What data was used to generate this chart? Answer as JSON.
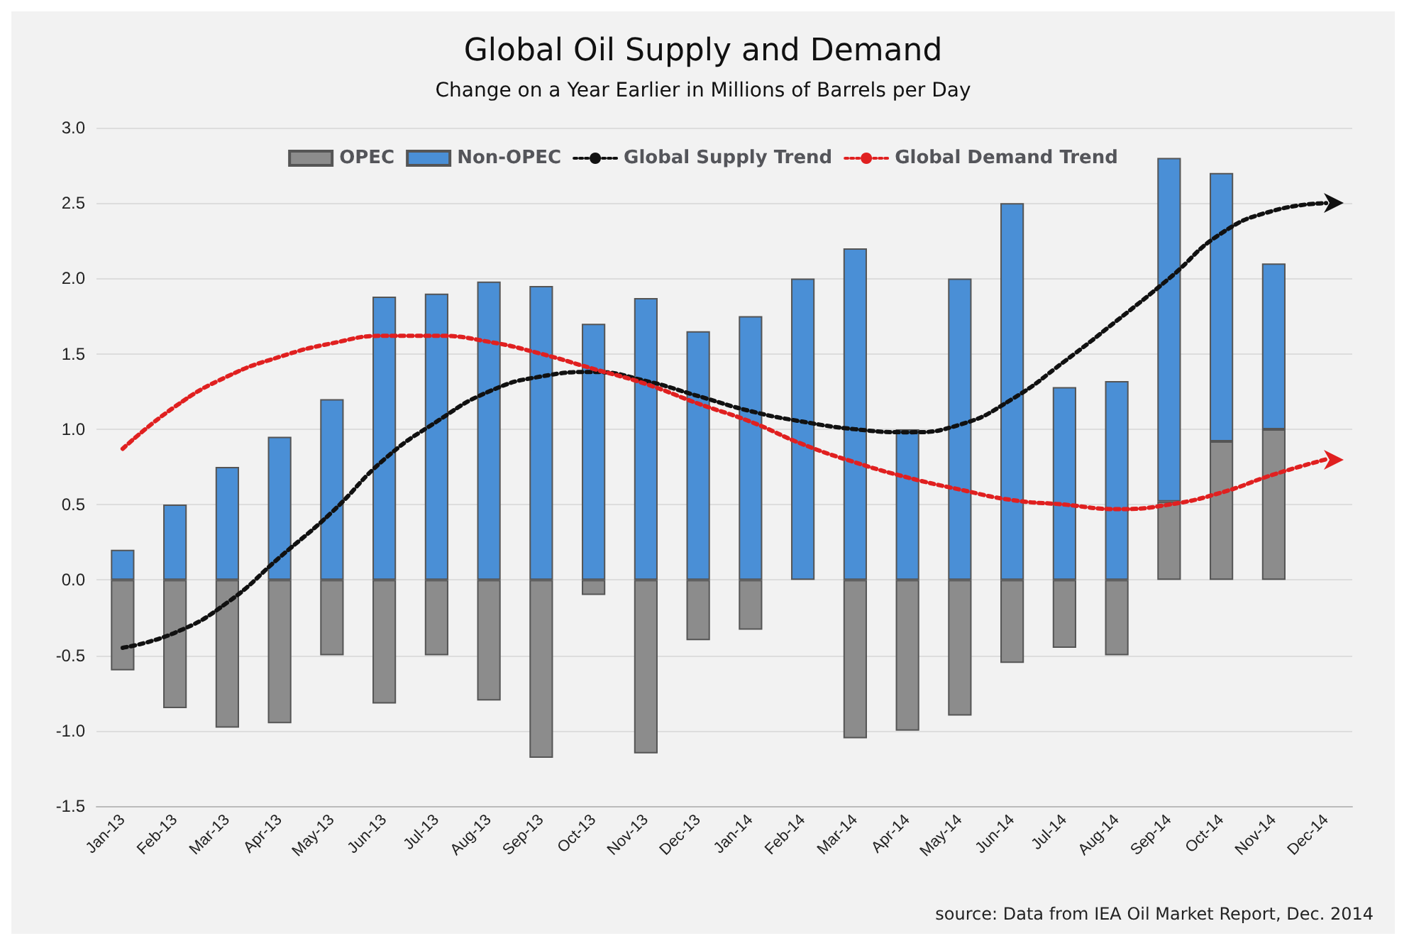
{
  "chart_data": {
    "type": "bar",
    "title": "Global Oil Supply and Demand",
    "subtitle": "Change on a Year Earlier in Millions of Barrels per Day",
    "categories": [
      "Jan-13",
      "Feb-13",
      "Mar-13",
      "Apr-13",
      "May-13",
      "Jun-13",
      "Jul-13",
      "Aug-13",
      "Sep-13",
      "Oct-13",
      "Nov-13",
      "Dec-13",
      "Jan-14",
      "Feb-14",
      "Mar-14",
      "Apr-14",
      "May-14",
      "Jun-14",
      "Jul-14",
      "Aug-14",
      "Sep-14",
      "Oct-14",
      "Nov-14",
      "Dec-14"
    ],
    "stacked": true,
    "series": [
      {
        "name": "OPEC",
        "color": "#8c8c8c",
        "values": [
          -0.6,
          -0.85,
          -0.98,
          -0.95,
          -0.5,
          -0.82,
          -0.5,
          -0.8,
          -1.18,
          -0.1,
          -1.15,
          -0.4,
          -0.33,
          null,
          -1.05,
          -1.0,
          -0.9,
          -0.55,
          -0.45,
          -0.5,
          0.52,
          0.92,
          1.0,
          null
        ]
      },
      {
        "name": "Non-OPEC",
        "color": "#4a8fd6",
        "values": [
          0.2,
          0.5,
          0.75,
          0.95,
          1.2,
          1.88,
          1.9,
          1.98,
          1.95,
          1.7,
          1.87,
          1.65,
          1.75,
          2.0,
          2.2,
          1.0,
          2.0,
          2.5,
          1.28,
          1.32,
          2.28,
          1.78,
          1.1,
          null
        ]
      },
      {
        "name": "Global Supply Trend",
        "type": "line",
        "color": "#111111",
        "line_style": "dotted",
        "marker": "none",
        "values": [
          -0.45,
          -0.35,
          -0.15,
          0.15,
          0.45,
          0.8,
          1.05,
          1.25,
          1.35,
          1.38,
          1.32,
          1.22,
          1.12,
          1.05,
          1.0,
          0.98,
          1.03,
          1.2,
          1.45,
          1.72,
          2.0,
          2.3,
          2.45,
          2.5
        ]
      },
      {
        "name": "Global Demand Trend",
        "type": "line",
        "color": "#e02020",
        "line_style": "dotted",
        "marker": "none",
        "values": [
          0.87,
          1.15,
          1.35,
          1.48,
          1.57,
          1.62,
          1.62,
          1.58,
          1.5,
          1.4,
          1.3,
          1.17,
          1.05,
          0.9,
          0.78,
          0.68,
          0.6,
          0.53,
          0.5,
          0.47,
          0.5,
          0.58,
          0.7,
          0.8
        ]
      }
    ],
    "ylim": [
      -1.5,
      3.0
    ],
    "yticks": [
      {
        "value": -1.5,
        "label": "-1.5"
      },
      {
        "value": -1.0,
        "label": "-1.0"
      },
      {
        "value": -0.5,
        "label": "-0.5"
      },
      {
        "value": 0,
        "label": "0.0"
      },
      {
        "value": 0.5,
        "label": "0.5"
      },
      {
        "value": 1.0,
        "label": "1.0"
      },
      {
        "value": 1.5,
        "label": "1.5"
      },
      {
        "value": 2.0,
        "label": "2.0"
      },
      {
        "value": 2.5,
        "label": "2.5"
      },
      {
        "value": 3.0,
        "label": "3.0"
      }
    ],
    "grid": "y",
    "legend": "top",
    "annotations": [
      "source: Data from IEA Oil Market Report, Dec. 2014"
    ]
  }
}
